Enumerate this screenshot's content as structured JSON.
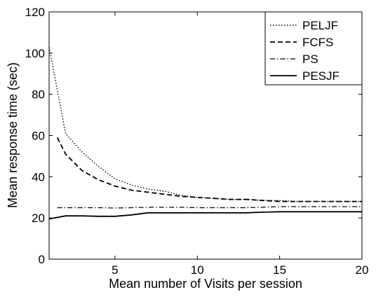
{
  "chart_data": {
    "type": "line",
    "title": "",
    "xlabel": "Mean number of Visits per session",
    "ylabel": "Mean response time (sec)",
    "xlim": [
      1,
      20
    ],
    "ylim": [
      0,
      120
    ],
    "xticks": [
      5,
      10,
      15,
      20
    ],
    "yticks": [
      0,
      20,
      40,
      60,
      80,
      100,
      120
    ],
    "grid": false,
    "legend_position": "top-right",
    "series": [
      {
        "name": "PELJF",
        "style": "dotted",
        "x": [
          1,
          2,
          3,
          4,
          5,
          6,
          7,
          8,
          9,
          10,
          11,
          12,
          13,
          14,
          15,
          16,
          17,
          18,
          19,
          20
        ],
        "y": [
          103,
          61,
          52,
          45,
          39,
          36,
          34,
          33,
          31,
          30,
          29.5,
          29,
          29,
          28.5,
          28.5,
          28,
          28,
          28,
          28,
          28
        ]
      },
      {
        "name": "FCFS",
        "style": "dashed",
        "x": [
          1.5,
          2,
          3,
          4,
          5,
          6,
          7,
          8,
          9,
          10,
          11,
          12,
          13,
          14,
          15,
          16,
          17,
          18,
          19,
          20
        ],
        "y": [
          59,
          51,
          43,
          38.5,
          35.5,
          33.5,
          32.5,
          31.5,
          30.5,
          30,
          29.5,
          29,
          29,
          28.5,
          28,
          28,
          28,
          28,
          28,
          28
        ]
      },
      {
        "name": "PS",
        "style": "dashdot",
        "x": [
          1.5,
          2,
          3,
          4,
          5,
          6,
          7,
          8,
          9,
          10,
          11,
          12,
          13,
          14,
          15,
          16,
          17,
          18,
          19,
          20
        ],
        "y": [
          25,
          25,
          25,
          25,
          24.8,
          25,
          25.2,
          25.2,
          25.2,
          25,
          25,
          25,
          25,
          25.2,
          25.5,
          25.5,
          25.5,
          25.5,
          25.5,
          25.5
        ]
      },
      {
        "name": "PESJF",
        "style": "solid",
        "x": [
          1,
          2,
          3,
          4,
          5,
          6,
          7,
          8,
          9,
          10,
          11,
          12,
          13,
          14,
          15,
          16,
          17,
          18,
          19,
          20
        ],
        "y": [
          19.5,
          21,
          21,
          20.8,
          20.8,
          21.5,
          22.5,
          22.5,
          22.5,
          22.5,
          22.5,
          22.5,
          22.5,
          22.8,
          23,
          23,
          23,
          23,
          23,
          23
        ]
      }
    ]
  }
}
